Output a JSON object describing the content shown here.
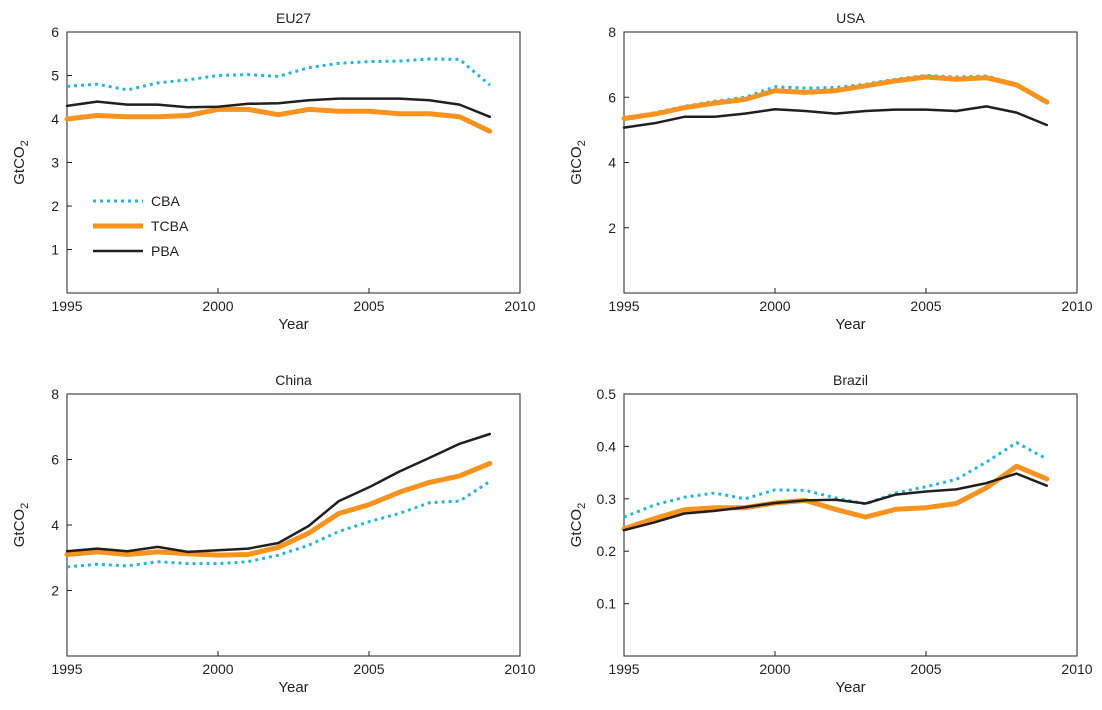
{
  "chart_data": [
    {
      "type": "line",
      "title": "EU27",
      "xlabel": "Year",
      "ylabel": "GtCO",
      "ylabel_subscript": "2",
      "xlim": [
        1995,
        2010
      ],
      "ylim": [
        0,
        6
      ],
      "xticks": [
        1995,
        2000,
        2005,
        2010
      ],
      "yticks": [
        1,
        2,
        3,
        4,
        5,
        6
      ],
      "x": [
        1995,
        1996,
        1997,
        1998,
        1999,
        2000,
        2001,
        2002,
        2003,
        2004,
        2005,
        2006,
        2007,
        2008,
        2009
      ],
      "legend": true,
      "legend_position": "lower-left",
      "series": [
        {
          "name": "CBA",
          "style": "dotted",
          "color": "#29b5d9",
          "values": [
            4.75,
            4.8,
            4.67,
            4.83,
            4.9,
            5.0,
            5.02,
            4.98,
            5.18,
            5.28,
            5.32,
            5.33,
            5.38,
            5.37,
            4.78
          ]
        },
        {
          "name": "TCBA",
          "style": "thick",
          "color": "#f7931e",
          "values": [
            4.0,
            4.08,
            4.05,
            4.05,
            4.08,
            4.22,
            4.22,
            4.1,
            4.22,
            4.18,
            4.18,
            4.12,
            4.12,
            4.05,
            3.72
          ]
        },
        {
          "name": "PBA",
          "style": "solid",
          "color": "#231f20",
          "values": [
            4.3,
            4.4,
            4.33,
            4.33,
            4.27,
            4.28,
            4.35,
            4.36,
            4.43,
            4.47,
            4.47,
            4.47,
            4.43,
            4.33,
            4.05
          ]
        }
      ]
    },
    {
      "type": "line",
      "title": "USA",
      "xlabel": "Year",
      "ylabel": "GtCO",
      "ylabel_subscript": "2",
      "xlim": [
        1995,
        2010
      ],
      "ylim": [
        0,
        8
      ],
      "xticks": [
        1995,
        2000,
        2005,
        2010
      ],
      "yticks": [
        2,
        4,
        6,
        8
      ],
      "x": [
        1995,
        1996,
        1997,
        1998,
        1999,
        2000,
        2001,
        2002,
        2003,
        2004,
        2005,
        2006,
        2007,
        2008,
        2009
      ],
      "legend": false,
      "series": [
        {
          "name": "CBA",
          "style": "dotted",
          "color": "#29b5d9",
          "values": [
            5.37,
            5.52,
            5.72,
            5.88,
            6.0,
            6.32,
            6.28,
            6.3,
            6.4,
            6.55,
            6.67,
            6.62,
            6.65,
            6.4,
            5.8
          ]
        },
        {
          "name": "TCBA",
          "style": "thick",
          "color": "#f7931e",
          "values": [
            5.35,
            5.48,
            5.68,
            5.82,
            5.93,
            6.2,
            6.15,
            6.2,
            6.35,
            6.5,
            6.62,
            6.55,
            6.6,
            6.38,
            5.85
          ]
        },
        {
          "name": "PBA",
          "style": "solid",
          "color": "#231f20",
          "values": [
            5.07,
            5.2,
            5.4,
            5.4,
            5.5,
            5.63,
            5.58,
            5.5,
            5.58,
            5.62,
            5.62,
            5.58,
            5.72,
            5.53,
            5.15
          ]
        }
      ]
    },
    {
      "type": "line",
      "title": "China",
      "xlabel": "Year",
      "ylabel": "GtCO",
      "ylabel_subscript": "2",
      "xlim": [
        1995,
        2010
      ],
      "ylim": [
        0,
        8
      ],
      "xticks": [
        1995,
        2000,
        2005,
        2010
      ],
      "yticks": [
        2,
        4,
        6,
        8
      ],
      "x": [
        1995,
        1996,
        1997,
        1998,
        1999,
        2000,
        2001,
        2002,
        2003,
        2004,
        2005,
        2006,
        2007,
        2008,
        2009
      ],
      "legend": false,
      "series": [
        {
          "name": "CBA",
          "style": "dotted",
          "color": "#29b5d9",
          "values": [
            2.72,
            2.8,
            2.75,
            2.88,
            2.82,
            2.82,
            2.88,
            3.08,
            3.38,
            3.8,
            4.1,
            4.35,
            4.68,
            4.73,
            5.33
          ]
        },
        {
          "name": "TCBA",
          "style": "thick",
          "color": "#f7931e",
          "values": [
            3.1,
            3.18,
            3.1,
            3.18,
            3.12,
            3.08,
            3.1,
            3.32,
            3.75,
            4.35,
            4.62,
            5.0,
            5.3,
            5.5,
            5.88
          ]
        },
        {
          "name": "PBA",
          "style": "solid",
          "color": "#231f20",
          "values": [
            3.2,
            3.28,
            3.2,
            3.33,
            3.18,
            3.23,
            3.28,
            3.45,
            3.97,
            4.73,
            5.15,
            5.63,
            6.05,
            6.48,
            6.78
          ]
        }
      ]
    },
    {
      "type": "line",
      "title": "Brazil",
      "xlabel": "Year",
      "ylabel": "GtCO",
      "ylabel_subscript": "2",
      "xlim": [
        1995,
        2010
      ],
      "ylim": [
        0,
        0.5
      ],
      "xticks": [
        1995,
        2000,
        2005,
        2010
      ],
      "yticks": [
        0.1,
        0.2,
        0.3,
        0.4,
        0.5
      ],
      "x": [
        1995,
        1996,
        1997,
        1998,
        1999,
        2000,
        2001,
        2002,
        2003,
        2004,
        2005,
        2006,
        2007,
        2008,
        2009
      ],
      "legend": false,
      "series": [
        {
          "name": "CBA",
          "style": "dotted",
          "color": "#29b5d9",
          "values": [
            0.265,
            0.288,
            0.303,
            0.311,
            0.3,
            0.317,
            0.316,
            0.302,
            0.29,
            0.311,
            0.323,
            0.337,
            0.37,
            0.407,
            0.376
          ]
        },
        {
          "name": "TCBA",
          "style": "thick",
          "color": "#f7931e",
          "values": [
            0.243,
            0.262,
            0.279,
            0.283,
            0.283,
            0.292,
            0.297,
            0.28,
            0.265,
            0.28,
            0.283,
            0.291,
            0.321,
            0.362,
            0.338
          ]
        },
        {
          "name": "PBA",
          "style": "solid",
          "color": "#231f20",
          "values": [
            0.24,
            0.255,
            0.272,
            0.277,
            0.284,
            0.292,
            0.297,
            0.298,
            0.291,
            0.308,
            0.314,
            0.318,
            0.33,
            0.348,
            0.325
          ]
        }
      ]
    }
  ]
}
